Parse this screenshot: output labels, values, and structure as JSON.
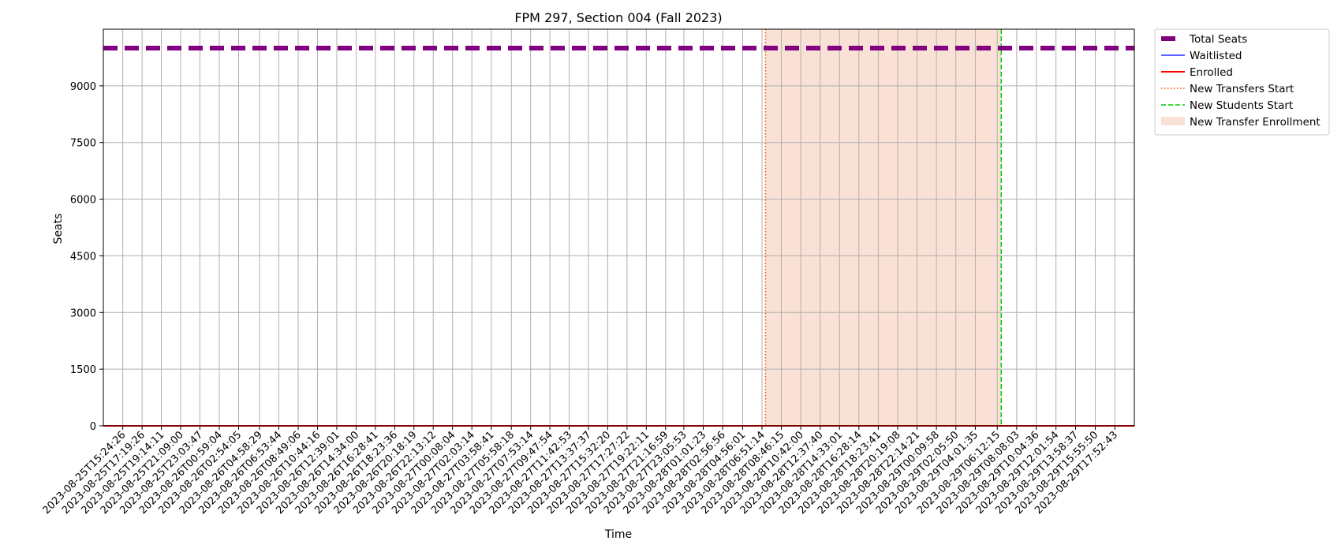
{
  "chart_data": {
    "type": "line",
    "title": "FPM 297, Section 004 (Fall 2023)",
    "xlabel": "Time",
    "ylabel": "Seats",
    "ylim": [
      0,
      10500
    ],
    "yticks": [
      0,
      1500,
      3000,
      4500,
      6000,
      7500,
      9000
    ],
    "grid": true,
    "legend_position": "outside-top-right",
    "x": [
      "2023-08-25T15:24:26",
      "2023-08-25T17:19:26",
      "2023-08-25T19:14:11",
      "2023-08-25T21:09:00",
      "2023-08-25T23:03:47",
      "2023-08-26T00:59:04",
      "2023-08-26T02:54:05",
      "2023-08-26T04:58:29",
      "2023-08-26T06:53:44",
      "2023-08-26T08:49:06",
      "2023-08-26T10:44:16",
      "2023-08-26T12:39:01",
      "2023-08-26T14:34:00",
      "2023-08-26T16:28:41",
      "2023-08-26T18:23:36",
      "2023-08-26T20:18:19",
      "2023-08-26T22:13:12",
      "2023-08-27T00:08:04",
      "2023-08-27T02:03:14",
      "2023-08-27T03:58:41",
      "2023-08-27T05:58:18",
      "2023-08-27T07:53:14",
      "2023-08-27T09:47:54",
      "2023-08-27T11:42:53",
      "2023-08-27T13:37:37",
      "2023-08-27T15:32:20",
      "2023-08-27T17:27:22",
      "2023-08-27T19:22:11",
      "2023-08-27T21:16:59",
      "2023-08-27T23:05:53",
      "2023-08-28T01:01:23",
      "2023-08-28T02:56:56",
      "2023-08-28T04:56:01",
      "2023-08-28T06:51:14",
      "2023-08-28T08:46:15",
      "2023-08-28T10:42:00",
      "2023-08-28T12:37:40",
      "2023-08-28T14:33:01",
      "2023-08-28T16:28:14",
      "2023-08-28T18:23:41",
      "2023-08-28T20:19:08",
      "2023-08-28T22:14:21",
      "2023-08-29T00:09:58",
      "2023-08-29T02:05:50",
      "2023-08-29T04:01:35",
      "2023-08-29T06:12:15",
      "2023-08-29T08:08:03",
      "2023-08-29T10:04:36",
      "2023-08-29T12:01:54",
      "2023-08-29T13:58:37",
      "2023-08-29T15:55:50",
      "2023-08-29T17:52:43"
    ],
    "series": [
      {
        "name": "Total Seats",
        "color": "#800080",
        "style": "dashed-thick",
        "value": 10000
      },
      {
        "name": "Waitlisted",
        "color": "#0000ff",
        "style": "solid",
        "value": 0
      },
      {
        "name": "Enrolled",
        "color": "#ff0000",
        "style": "solid",
        "value": 0
      }
    ],
    "markers": [
      {
        "name": "New Transfers Start",
        "at": "2023-08-28T07:12:00",
        "color": "#ff4500",
        "style": "dotted"
      },
      {
        "name": "New Students Start",
        "at": "2023-08-29T06:36:00",
        "color": "#00cc00",
        "style": "dashed"
      }
    ],
    "shaded_region": {
      "name": "New Transfer Enrollment",
      "from": "2023-08-28T07:12:00",
      "to": "2023-08-29T06:36:00",
      "color": "#f4c4ac"
    }
  }
}
